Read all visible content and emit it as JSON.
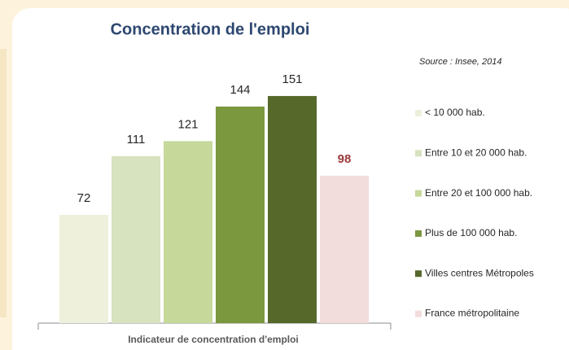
{
  "chart_data": {
    "type": "bar",
    "title": "Concentration de l'emploi",
    "annotation": "Source : Insee, 2014",
    "x_label": "Indicateur de concentration d'emploi",
    "categories": [
      "< 10 000 hab.",
      "Entre 10 et 20 000 hab.",
      "Entre 20 et 100 000 hab.",
      "Plus de 100 000 hab.",
      "Villes centres Métropoles",
      "France métropolitaine"
    ],
    "values": [
      72,
      111,
      121,
      144,
      151,
      98
    ],
    "colors": [
      "#eef0dc",
      "#d7e2bf",
      "#c6d89a",
      "#7b983f",
      "#56692b",
      "#f3dcdc"
    ],
    "label_colors": [
      "#262626",
      "#262626",
      "#262626",
      "#262626",
      "#262626",
      "#9b3b3b"
    ],
    "legend": "right"
  }
}
